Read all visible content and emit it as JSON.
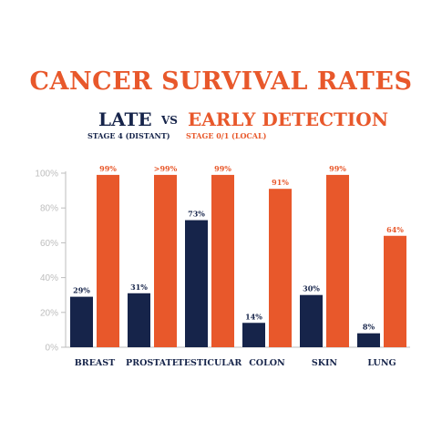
{
  "title": "CANCER SURVIVAL RATES",
  "legend": {
    "late": {
      "label": "LATE",
      "sublabel": "STAGE 4 (DISTANT)"
    },
    "vs": "VS",
    "early": {
      "label": "EARLY DETECTION",
      "sublabel": "STAGE 0/1 (LOCAL)"
    }
  },
  "colors": {
    "late": "#16244a",
    "early": "#e8582b",
    "title": "#e8582b",
    "axis": "#bdbdbd",
    "label": "#16244a"
  },
  "chart_data": {
    "type": "bar",
    "title": "CANCER SURVIVAL RATES",
    "categories": [
      "BREAST",
      "PROSTATE",
      "TESTICULAR",
      "COLON",
      "SKIN",
      "LUNG"
    ],
    "series": [
      {
        "name": "LATE",
        "values": [
          29,
          31,
          73,
          14,
          30,
          8
        ],
        "labels": [
          "29%",
          "31%",
          "73%",
          "14%",
          "30%",
          "8%"
        ]
      },
      {
        "name": "EARLY DETECTION",
        "values": [
          99,
          99,
          99,
          91,
          99,
          64
        ],
        "labels": [
          "99%",
          ">99%",
          "99%",
          "91%",
          "99%",
          "64%"
        ]
      }
    ],
    "ylim": [
      0,
      100
    ],
    "yticks": [
      "0%",
      "20%",
      "40%",
      "60%",
      "80%",
      "100%"
    ],
    "grid": false,
    "legend": "top"
  }
}
